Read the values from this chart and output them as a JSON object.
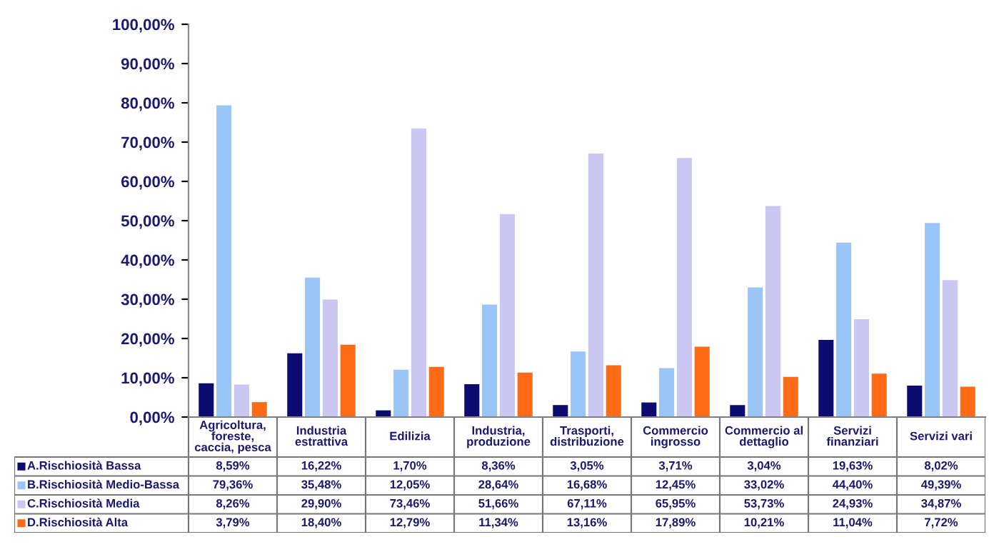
{
  "chart_data": {
    "type": "bar",
    "categories": [
      "Agricoltura, foreste, caccia, pesca",
      "Industria estrattiva",
      "Edilizia",
      "Industria, produzione",
      "Trasporti, distribuzione",
      "Commercio ingrosso",
      "Commercio al dettaglio",
      "Servizi finanziari",
      "Servizi vari"
    ],
    "series": [
      {
        "name": "A.Rischiosità Bassa",
        "color": "#0c0c6e",
        "values": [
          8.59,
          16.22,
          1.7,
          8.36,
          3.05,
          3.71,
          3.04,
          19.63,
          8.02
        ],
        "value_labels": [
          "8,59%",
          "16,22%",
          "1,70%",
          "8,36%",
          "3,05%",
          "3,71%",
          "3,04%",
          "19,63%",
          "8,02%"
        ]
      },
      {
        "name": "B.Rischiosità Medio-Bassa",
        "color": "#99c6f6",
        "values": [
          79.36,
          35.48,
          12.05,
          28.64,
          16.68,
          12.45,
          33.02,
          44.4,
          49.39
        ],
        "value_labels": [
          "79,36%",
          "35,48%",
          "12,05%",
          "28,64%",
          "16,68%",
          "12,45%",
          "33,02%",
          "44,40%",
          "49,39%"
        ]
      },
      {
        "name": "C.Rischiosità Media",
        "color": "#cac8f2",
        "values": [
          8.26,
          29.9,
          73.46,
          51.66,
          67.11,
          65.95,
          53.73,
          24.93,
          34.87
        ],
        "value_labels": [
          "8,26%",
          "29,90%",
          "73,46%",
          "51,66%",
          "67,11%",
          "65,95%",
          "53,73%",
          "24,93%",
          "34,87%"
        ]
      },
      {
        "name": "D.Rischiosità Alta",
        "color": "#ff6a14",
        "values": [
          3.79,
          18.4,
          12.79,
          11.34,
          13.16,
          17.89,
          10.21,
          11.04,
          7.72
        ],
        "value_labels": [
          "3,79%",
          "18,40%",
          "12,79%",
          "11,34%",
          "13,16%",
          "17,89%",
          "10,21%",
          "11,04%",
          "7,72%"
        ]
      }
    ],
    "ylim": [
      0,
      100
    ],
    "yticks": [
      {
        "value": 0,
        "label": "0,00%"
      },
      {
        "value": 10,
        "label": "10,00%"
      },
      {
        "value": 20,
        "label": "20,00%"
      },
      {
        "value": 30,
        "label": "30,00%"
      },
      {
        "value": 40,
        "label": "40,00%"
      },
      {
        "value": 50,
        "label": "50,00%"
      },
      {
        "value": 60,
        "label": "60,00%"
      },
      {
        "value": 70,
        "label": "70,00%"
      },
      {
        "value": 80,
        "label": "80,00%"
      },
      {
        "value": 90,
        "label": "90,00%"
      },
      {
        "value": 100,
        "label": "100,00%"
      }
    ],
    "grid": false,
    "legend": "bottom left"
  }
}
